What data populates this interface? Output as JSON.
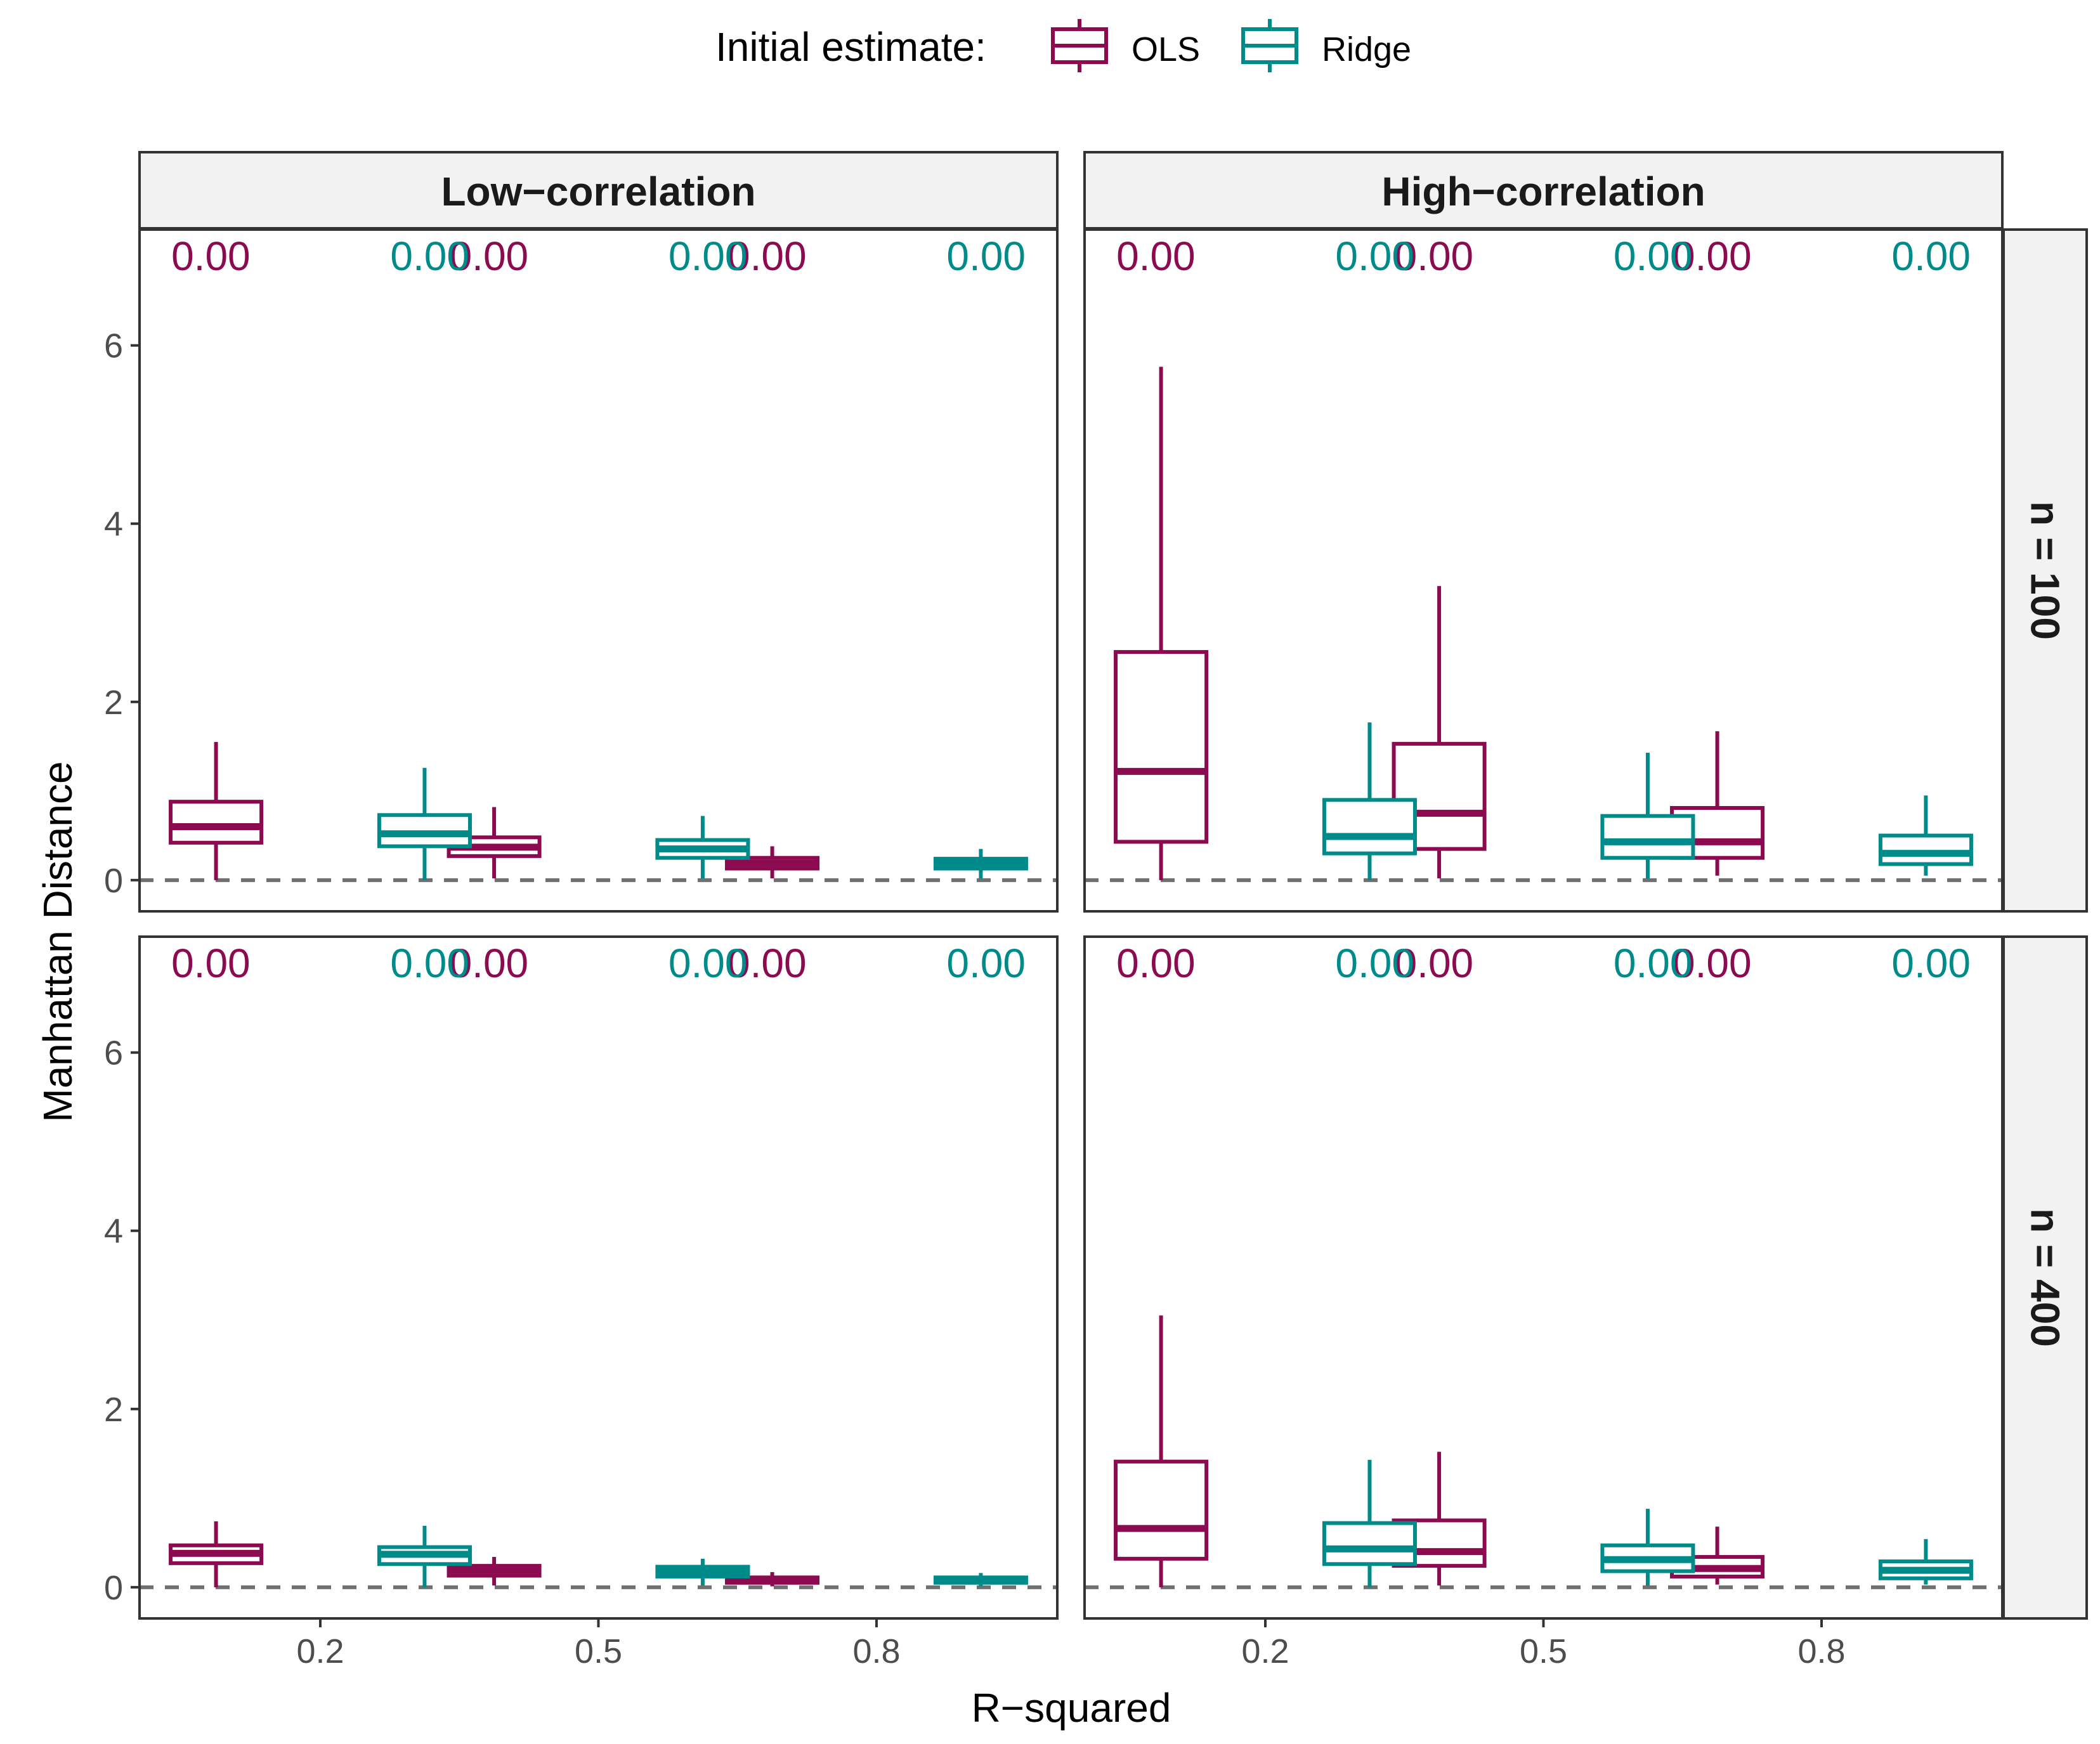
{
  "legend": {
    "title": "Initial estimate:",
    "items": [
      {
        "label": "OLS",
        "color": "#8B0A50"
      },
      {
        "label": "Ridge",
        "color": "#008B8B"
      }
    ]
  },
  "xlabel": "R−squared",
  "ylabel": "Manhattan Distance",
  "chart_data": {
    "type": "boxplot",
    "facet_cols": [
      "Low−correlation",
      "High−correlation"
    ],
    "facet_rows": [
      "n = 100",
      "n = 400"
    ],
    "categories": [
      "0.2",
      "0.5",
      "0.8"
    ],
    "yticks": [
      "0",
      "2",
      "4",
      "6"
    ],
    "ylim": [
      -0.35,
      7.3
    ],
    "reference_line_y": 0,
    "legend_position": "top",
    "grid": false,
    "series": [
      "OLS",
      "Ridge"
    ],
    "annotations": {
      "y": 7.0,
      "OLS": "0.00",
      "Ridge": "0.00"
    },
    "panels": [
      {
        "col": "Low−correlation",
        "row": "n = 100",
        "boxes": {
          "OLS": [
            [
              0.0,
              0.42,
              0.6,
              0.88,
              1.55
            ],
            [
              0.02,
              0.27,
              0.37,
              0.48,
              0.82
            ],
            [
              0.02,
              0.13,
              0.19,
              0.25,
              0.38
            ]
          ],
          "Ridge": [
            [
              0.0,
              0.38,
              0.52,
              0.73,
              1.26
            ],
            [
              0.02,
              0.25,
              0.35,
              0.45,
              0.72
            ],
            [
              0.02,
              0.13,
              0.19,
              0.24,
              0.35
            ]
          ]
        }
      },
      {
        "col": "High−correlation",
        "row": "n = 100",
        "boxes": {
          "OLS": [
            [
              0.0,
              0.43,
              1.22,
              2.56,
              5.76
            ],
            [
              0.02,
              0.35,
              0.75,
              1.53,
              3.3
            ],
            [
              0.05,
              0.25,
              0.43,
              0.81,
              1.67
            ]
          ],
          "Ridge": [
            [
              0.0,
              0.3,
              0.49,
              0.9,
              1.77
            ],
            [
              0.02,
              0.25,
              0.43,
              0.72,
              1.43
            ],
            [
              0.05,
              0.18,
              0.3,
              0.5,
              0.95
            ]
          ]
        }
      },
      {
        "col": "Low−correlation",
        "row": "n = 400",
        "boxes": {
          "OLS": [
            [
              0.0,
              0.27,
              0.38,
              0.47,
              0.74
            ],
            [
              0.02,
              0.13,
              0.19,
              0.24,
              0.34
            ],
            [
              0.01,
              0.05,
              0.08,
              0.11,
              0.17
            ]
          ],
          "Ridge": [
            [
              0.0,
              0.26,
              0.37,
              0.45,
              0.69
            ],
            [
              0.02,
              0.12,
              0.18,
              0.23,
              0.32
            ],
            [
              0.01,
              0.05,
              0.08,
              0.11,
              0.16
            ]
          ]
        }
      },
      {
        "col": "High−correlation",
        "row": "n = 400",
        "boxes": {
          "OLS": [
            [
              0.0,
              0.32,
              0.66,
              1.41,
              3.05
            ],
            [
              0.02,
              0.24,
              0.4,
              0.75,
              1.52
            ],
            [
              0.03,
              0.12,
              0.21,
              0.34,
              0.68
            ]
          ],
          "Ridge": [
            [
              0.0,
              0.26,
              0.43,
              0.72,
              1.43
            ],
            [
              0.02,
              0.18,
              0.31,
              0.47,
              0.88
            ],
            [
              0.03,
              0.1,
              0.19,
              0.29,
              0.54
            ]
          ]
        }
      }
    ]
  }
}
